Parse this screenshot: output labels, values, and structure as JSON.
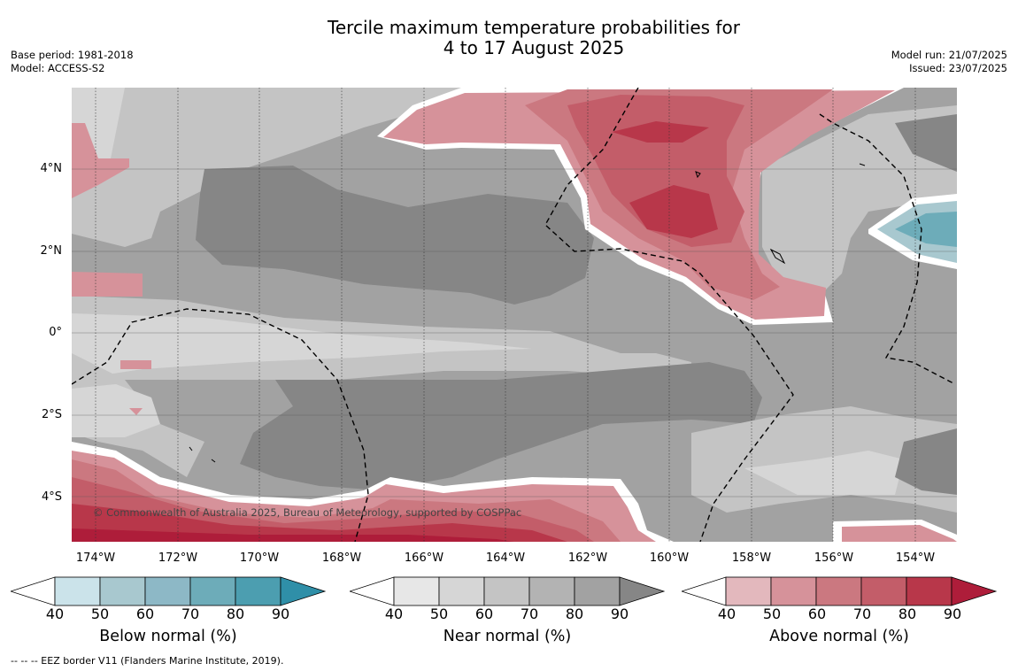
{
  "title": {
    "line1": "Tercile maximum temperature probabilities for",
    "line2": "4 to 17 August 2025"
  },
  "meta_left": {
    "base_period": "Base period: 1981-2018",
    "model": "Model: ACCESS-S2"
  },
  "meta_right": {
    "model_run": "Model run: 21/07/2025",
    "issued": "Issued: 23/07/2025"
  },
  "map": {
    "copyright": "© Commonwealth of Australia 2025, Bureau of Meteorology, supported by COSPPac",
    "lat_labels": [
      "4°N",
      "2°N",
      "0°",
      "2°S",
      "4°S"
    ],
    "lon_labels": [
      "174°W",
      "172°W",
      "170°W",
      "168°W",
      "166°W",
      "164°W",
      "162°W",
      "160°W",
      "158°W",
      "156°W",
      "154°W"
    ]
  },
  "colorbars": [
    {
      "title": "Below normal (%)",
      "ticks": [
        "40",
        "50",
        "60",
        "70",
        "80",
        "90"
      ],
      "colors": [
        "#ffffff",
        "#cbe3ea",
        "#a8c8cf",
        "#8db8c6",
        "#6dacb9",
        "#4c9eb0",
        "#2f8fa8"
      ]
    },
    {
      "title": "Near normal (%)",
      "ticks": [
        "40",
        "50",
        "60",
        "70",
        "80",
        "90"
      ],
      "colors": [
        "#ffffff",
        "#e7e7e7",
        "#d6d6d6",
        "#c4c4c4",
        "#b3b3b3",
        "#a2a2a2",
        "#868686"
      ]
    },
    {
      "title": "Above normal (%)",
      "ticks": [
        "40",
        "50",
        "60",
        "70",
        "80",
        "90"
      ],
      "colors": [
        "#ffffff",
        "#e3b8bd",
        "#d6929a",
        "#cb7880",
        "#c35d69",
        "#b8374a",
        "#ae1d3a"
      ]
    }
  ],
  "footnote": "-- -- -- EEZ border V11 (Flanders Marine Institute, 2019)."
}
